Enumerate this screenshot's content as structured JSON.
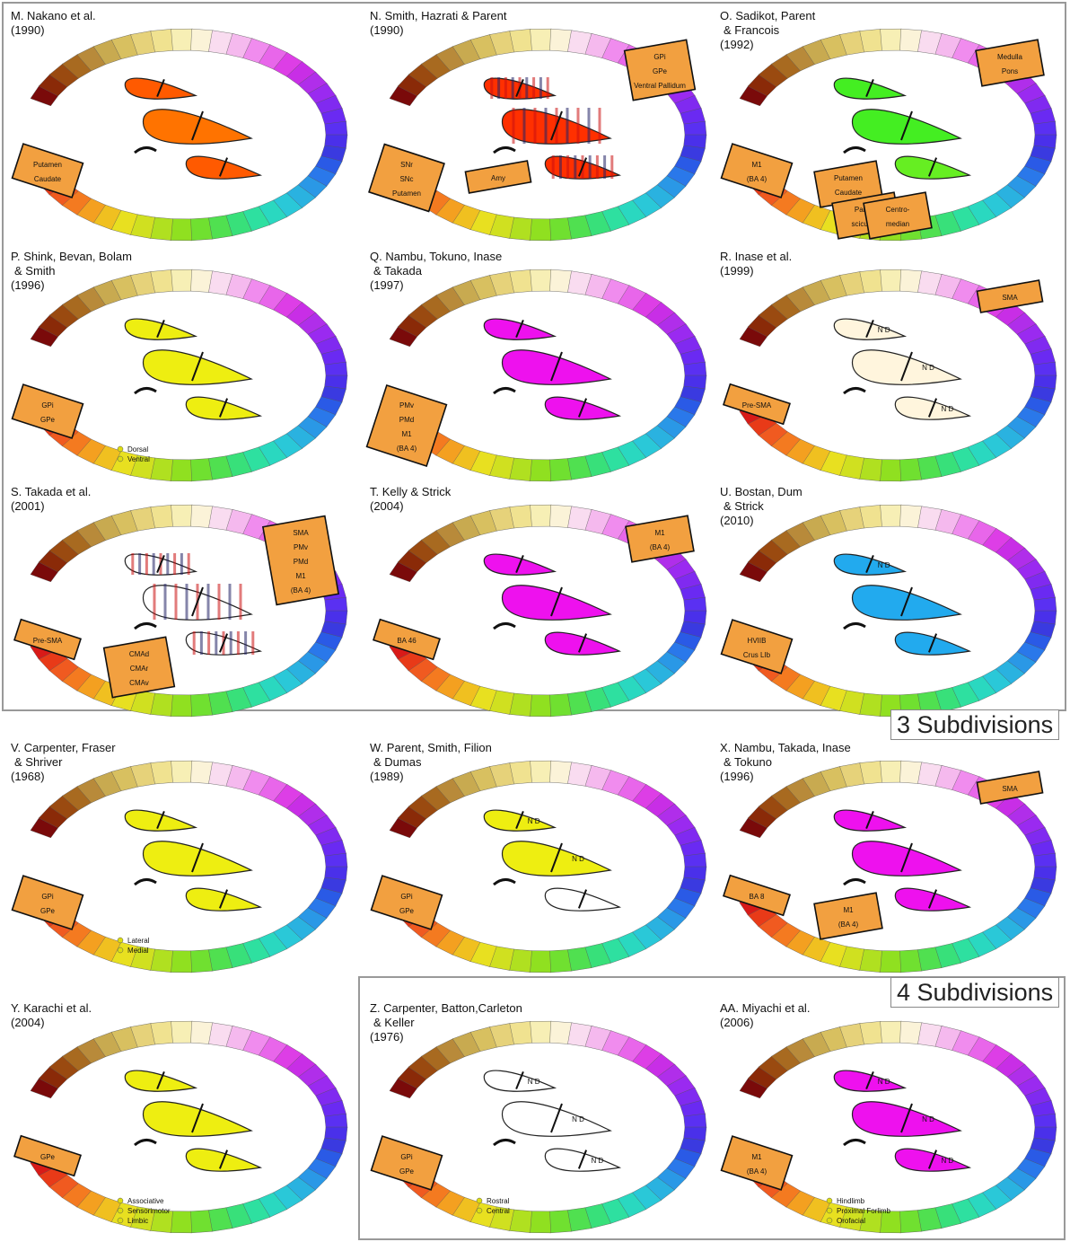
{
  "section_labels": [
    "3 Subdivisions",
    "4 Subdivisions"
  ],
  "panels": [
    {
      "id": "M",
      "title": [
        "M. Nakano et al.",
        "(1990)"
      ],
      "fills": [
        "#ff5a00",
        "#ff7300",
        "#ff5a00"
      ],
      "stripes": false,
      "boxes": [
        [
          "Putamen",
          "Caudate"
        ]
      ],
      "legend": [],
      "nd": []
    },
    {
      "id": "N",
      "title": [
        "N. Smith, Hazrati & Parent",
        "(1990)"
      ],
      "fills": [
        "#ff3000",
        "#ff3000",
        "#ff3000"
      ],
      "stripes": true,
      "boxes": [
        [
          "SNr",
          "SNc",
          "Putamen"
        ],
        [
          "GPi",
          "GPe",
          "Ventral Pallidum"
        ],
        [
          "Amy"
        ]
      ],
      "legend": [],
      "nd": []
    },
    {
      "id": "O",
      "title": [
        "O. Sadikot, Parent",
        "& Francois",
        "(1992)"
      ],
      "fills": [
        "#44ee22",
        "#44ee22",
        "#66ee22"
      ],
      "stripes": false,
      "boxes": [
        [
          "M1",
          "(BA 4)"
        ],
        [
          "Medulla",
          "Pons"
        ],
        [
          "Putamen",
          "Caudate"
        ],
        [
          "Parafa-",
          "scicularis"
        ],
        [
          "Centro-",
          "median"
        ]
      ],
      "legend": [],
      "nd": []
    },
    {
      "id": "P",
      "title": [
        "P. Shink, Bevan, Bolam",
        "& Smith",
        "(1996)"
      ],
      "fills": [
        "#eeee11",
        "#eeee11",
        "#eeee11"
      ],
      "stripes": false,
      "boxes": [
        [
          "GPi",
          "GPe"
        ]
      ],
      "legend": [
        "Dorsal",
        "Ventral"
      ],
      "nd": []
    },
    {
      "id": "Q",
      "title": [
        "Q. Nambu, Tokuno, Inase",
        "& Takada",
        "(1997)"
      ],
      "fills": [
        "#ee11ee",
        "#ee11ee",
        "#ee11ee"
      ],
      "stripes": false,
      "boxes": [
        [
          "PMv",
          "PMd",
          "M1",
          "(BA 4)"
        ]
      ],
      "legend": [],
      "nd": []
    },
    {
      "id": "R",
      "title": [
        "R. Inase et al.",
        "(1999)"
      ],
      "fills": [
        "#fff5dd",
        "#fff5dd",
        "#fff5dd"
      ],
      "stripes": false,
      "boxes": [
        [
          "Pre-SMA"
        ],
        [
          "SMA"
        ]
      ],
      "legend": [],
      "nd": [
        "N D",
        "N D",
        "N D"
      ]
    },
    {
      "id": "S",
      "title": [
        "S. Takada et al.",
        "(2001)"
      ],
      "fills": [
        "#ffffff",
        "#ffffff",
        "#ffffff"
      ],
      "stripes": true,
      "boxes": [
        [
          "Pre-SMA"
        ],
        [
          "SMA",
          "PMv",
          "PMd",
          "M1",
          "(BA 4)"
        ],
        [
          "CMAd",
          "CMAr",
          "CMAv"
        ]
      ],
      "legend": [],
      "nd": []
    },
    {
      "id": "T",
      "title": [
        "T. Kelly & Strick",
        "(2004)"
      ],
      "fills": [
        "#ee11ee",
        "#ee11ee",
        "#ee11ee"
      ],
      "stripes": false,
      "boxes": [
        [
          "BA 46"
        ],
        [
          "M1",
          "(BA 4)"
        ]
      ],
      "legend": [],
      "nd": []
    },
    {
      "id": "U",
      "title": [
        "U. Bostan, Dum",
        "& Strick",
        "(2010)"
      ],
      "fills": [
        "#22aaee",
        "#22aaee",
        "#22aaee"
      ],
      "stripes": false,
      "boxes": [
        [
          "HVIIB",
          "Crus LIb"
        ]
      ],
      "legend": [],
      "nd": [
        "N D"
      ]
    },
    {
      "id": "V",
      "title": [
        "V. Carpenter, Fraser",
        "& Shriver",
        "(1968)"
      ],
      "fills": [
        "#eeee11",
        "#eeee11",
        "#eeee11"
      ],
      "stripes": false,
      "boxes": [
        [
          "GPi",
          "GPe"
        ]
      ],
      "legend": [
        "Lateral",
        "Medial"
      ],
      "nd": []
    },
    {
      "id": "W",
      "title": [
        "W. Parent, Smith, Filion",
        "& Dumas",
        "(1989)"
      ],
      "fills": [
        "#eeee11",
        "#eeee11",
        "#ffffff"
      ],
      "stripes": false,
      "boxes": [
        [
          "GPi",
          "GPe"
        ]
      ],
      "legend": [],
      "nd": [
        "N D",
        "N D"
      ]
    },
    {
      "id": "X",
      "title": [
        "X. Nambu, Takada, Inase",
        "& Tokuno",
        "(1996)"
      ],
      "fills": [
        "#ee11ee",
        "#ee11ee",
        "#ee11ee"
      ],
      "stripes": false,
      "boxes": [
        [
          "BA 8"
        ],
        [
          "SMA"
        ],
        [
          "M1",
          "(BA 4)"
        ]
      ],
      "legend": [],
      "nd": []
    },
    {
      "id": "Y",
      "title": [
        "Y. Karachi et al.",
        "(2004)"
      ],
      "fills": [
        "#eeee11",
        "#eeee11",
        "#eeee11"
      ],
      "stripes": false,
      "boxes": [
        [
          "GPe"
        ]
      ],
      "legend": [
        "Associative",
        "Sensorimotor",
        "Limbic"
      ],
      "nd": []
    },
    {
      "id": "Z",
      "title": [
        "Z. Carpenter, Batton,Carleton",
        "& Keller",
        "(1976)"
      ],
      "fills": [
        "#ffffff",
        "#ffffff",
        "#ffffff"
      ],
      "stripes": false,
      "boxes": [
        [
          "GPi",
          "GPe"
        ]
      ],
      "legend": [
        "Rostral",
        "Central"
      ],
      "nd": [
        "N D",
        "N D",
        "N D"
      ]
    },
    {
      "id": "AA",
      "title": [
        "AA. Miyachi et al.",
        "(2006)"
      ],
      "fills": [
        "#ee11ee",
        "#ee11ee",
        "#ee11ee"
      ],
      "stripes": false,
      "boxes": [
        [
          "M1",
          "(BA 4)"
        ]
      ],
      "legend": [
        "Hindlimb",
        "Proximal Forlimb",
        "Orofacial"
      ],
      "nd": [
        "N D",
        "N D",
        "N D"
      ]
    }
  ]
}
